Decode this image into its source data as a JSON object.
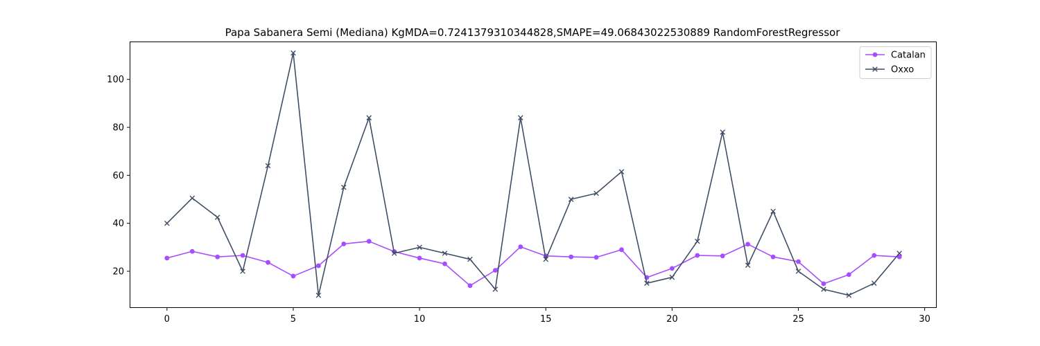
{
  "chart_data": {
    "type": "line",
    "title": "Papa Sabanera Semi (Mediana) KgMDA=0.7241379310344828,SMAPE=49.06843022530889 RandomForestRegressor",
    "xlabel": "",
    "ylabel": "",
    "xlim": [
      -1.45,
      30.45
    ],
    "ylim": [
      5,
      115.5
    ],
    "xticks": [
      0,
      5,
      10,
      15,
      20,
      25,
      30
    ],
    "yticks": [
      20,
      40,
      60,
      80,
      100
    ],
    "grid": false,
    "legend_position": "top-right",
    "x": [
      0,
      1,
      2,
      3,
      4,
      5,
      6,
      7,
      8,
      9,
      10,
      11,
      12,
      13,
      14,
      15,
      16,
      17,
      18,
      19,
      20,
      21,
      22,
      23,
      24,
      25,
      26,
      27,
      28,
      29
    ],
    "series": [
      {
        "name": "Catalan",
        "color": "#a64dff",
        "marker": "circle",
        "values": [
          25.5,
          28.3,
          26.0,
          26.6,
          23.7,
          18.0,
          22.3,
          31.4,
          32.5,
          28.2,
          25.5,
          23.1,
          14.0,
          20.4,
          30.2,
          26.4,
          26.0,
          25.8,
          29.0,
          17.4,
          21.2,
          26.6,
          26.4,
          31.3,
          26.0,
          24.0,
          14.8,
          18.6,
          26.6,
          26.0
        ]
      },
      {
        "name": "Oxxo",
        "color": "#3f4e66",
        "marker": "x",
        "values": [
          40.0,
          50.5,
          42.5,
          20.0,
          64.0,
          111.0,
          10.0,
          55.0,
          84.0,
          27.5,
          30.0,
          27.5,
          25.0,
          12.5,
          84.0,
          25.0,
          50.0,
          52.5,
          61.5,
          15.0,
          17.5,
          32.5,
          78.0,
          22.5,
          45.0,
          20.0,
          12.5,
          10.0,
          15.0,
          27.5
        ]
      }
    ]
  }
}
